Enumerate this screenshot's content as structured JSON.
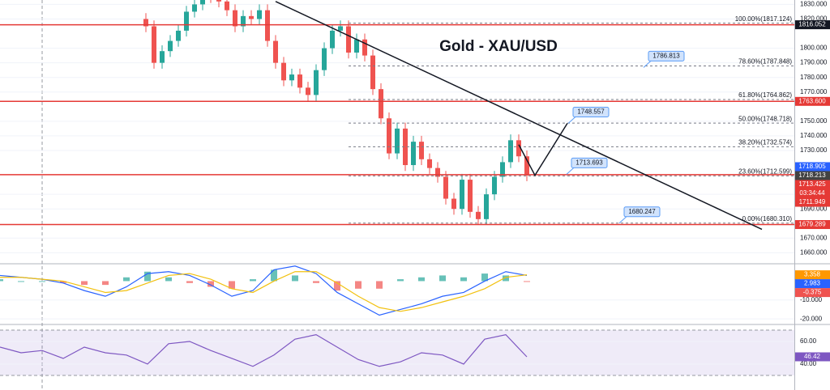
{
  "chart_data": [
    {
      "type": "candlestick",
      "title": "Gold - XAU/USD",
      "x": [
        0,
        1,
        2,
        3,
        4,
        5,
        6,
        7,
        8,
        9,
        10,
        11,
        12,
        13,
        14,
        15,
        16,
        17,
        18,
        19,
        20,
        21,
        22,
        23,
        24,
        25,
        26,
        27,
        28,
        29,
        30,
        31,
        32,
        33,
        34,
        35,
        36,
        37,
        38,
        39,
        40,
        41,
        42,
        43,
        44,
        45,
        46,
        47
      ],
      "open": [
        1820,
        1815,
        1790,
        1798,
        1805,
        1812,
        1825,
        1830,
        1838,
        1835,
        1832,
        1826,
        1815,
        1822,
        1820,
        1826,
        1805,
        1790,
        1778,
        1782,
        1773,
        1768,
        1785,
        1800,
        1812,
        1815,
        1797,
        1806,
        1795,
        1772,
        1752,
        1728,
        1745,
        1720,
        1736,
        1724,
        1718,
        1712,
        1697,
        1690,
        1710,
        1688,
        1683,
        1700,
        1712,
        1722,
        1737,
        1726
      ],
      "high": [
        1824,
        1819,
        1802,
        1809,
        1816,
        1829,
        1834,
        1842,
        1842,
        1839,
        1836,
        1830,
        1826,
        1826,
        1830,
        1830,
        1809,
        1794,
        1786,
        1786,
        1777,
        1789,
        1804,
        1816,
        1819,
        1819,
        1810,
        1810,
        1799,
        1776,
        1756,
        1749,
        1749,
        1740,
        1740,
        1728,
        1722,
        1716,
        1701,
        1714,
        1714,
        1692,
        1704,
        1716,
        1726,
        1741,
        1741,
        1730
      ],
      "low": [
        1811,
        1786,
        1786,
        1794,
        1801,
        1808,
        1821,
        1826,
        1831,
        1828,
        1822,
        1811,
        1811,
        1816,
        1816,
        1801,
        1786,
        1774,
        1774,
        1769,
        1764,
        1764,
        1781,
        1796,
        1808,
        1793,
        1793,
        1791,
        1768,
        1748,
        1724,
        1724,
        1716,
        1716,
        1720,
        1714,
        1708,
        1693,
        1686,
        1686,
        1684,
        1679,
        1679,
        1696,
        1708,
        1718,
        1722,
        1709
      ],
      "close": [
        1815,
        1790,
        1798,
        1805,
        1812,
        1825,
        1830,
        1838,
        1835,
        1832,
        1826,
        1815,
        1822,
        1820,
        1826,
        1805,
        1790,
        1778,
        1782,
        1773,
        1768,
        1785,
        1800,
        1812,
        1815,
        1797,
        1806,
        1795,
        1772,
        1752,
        1728,
        1745,
        1720,
        1736,
        1724,
        1718,
        1712,
        1697,
        1690,
        1710,
        1688,
        1683,
        1700,
        1712,
        1722,
        1737,
        1726,
        1713
      ],
      "up_color": "#26a69a",
      "down_color": "#ef5350",
      "xlim": [
        -18,
        80
      ],
      "ylim": [
        1653,
        1833
      ],
      "yticks": [
        {
          "value": 1830,
          "label": "1830.000"
        },
        {
          "value": 1820,
          "label": "1820.000"
        },
        {
          "value": 1800,
          "label": "1800.000"
        },
        {
          "value": 1790,
          "label": "1790.000"
        },
        {
          "value": 1780,
          "label": "1780.000"
        },
        {
          "value": 1770,
          "label": "1770.000"
        },
        {
          "value": 1750,
          "label": "1750.000"
        },
        {
          "value": 1740,
          "label": "1740.000"
        },
        {
          "value": 1730,
          "label": "1730.000"
        },
        {
          "value": 1700,
          "label": "1700.000"
        },
        {
          "value": 1690,
          "label": "1690.000"
        },
        {
          "value": 1670,
          "label": "1670.000"
        },
        {
          "value": 1660,
          "label": "1660.000"
        }
      ],
      "grid": true,
      "hlines": [
        1816.052,
        1763.6,
        1713.425,
        1679.289
      ],
      "hline_color": "#e53935",
      "fib": [
        {
          "value": 1817.124,
          "label": "100.00%(1817.124)"
        },
        {
          "value": 1787.848,
          "label": "78.60%(1787.848)"
        },
        {
          "value": 1764.862,
          "label": "61.80%(1764.862)"
        },
        {
          "value": 1748.718,
          "label": "50.00%(1748.718)"
        },
        {
          "value": 1732.574,
          "label": "38.20%(1732.574)"
        },
        {
          "value": 1712.599,
          "label": "23.60%(1712.599)"
        },
        {
          "value": 1680.31,
          "label": "0.00%(1680.310)"
        }
      ],
      "fib_start": 25,
      "callouts": [
        1786.813,
        1748.557,
        1713.693,
        1680.247
      ],
      "trendline": {
        "x": [
          16,
          76
        ],
        "y": [
          1832,
          1676
        ]
      },
      "projection": {
        "x": [
          46,
          48,
          52
        ],
        "y": [
          1734,
          1713,
          1748.6
        ]
      },
      "price_tags": [
        {
          "value": 1816.052,
          "color": "#131722"
        },
        {
          "value": 1763.6,
          "label": "1763.600",
          "color": "#e53935"
        },
        {
          "value": 1718.905,
          "color": "#2962ff"
        },
        {
          "value": 1718.213,
          "color": "#424242"
        },
        {
          "value": 1713.425,
          "color": "#e53935"
        },
        {
          "value": 1711.949,
          "color": "#e53935"
        },
        {
          "value": 1679.289,
          "color": "#e53935"
        }
      ],
      "countdown": "03:34:44"
    },
    {
      "type": "macd",
      "x": [
        -18,
        -15.4,
        -12.8,
        -10.2,
        -7.6,
        -5,
        -2.4,
        0.2,
        2.8,
        5.4,
        8,
        10.6,
        13.2,
        15.8,
        18.4,
        21,
        23.6,
        26.2,
        28.8,
        31.4,
        34,
        36.6,
        39.2,
        41.8,
        44.4,
        47
      ],
      "histogram": [
        1,
        0,
        0,
        -1,
        -2,
        -2,
        2,
        5,
        2,
        -1,
        -3,
        -4,
        1,
        6,
        3,
        -1,
        -5,
        -4,
        -4,
        1,
        2,
        3,
        2,
        4,
        3,
        -0.375
      ],
      "up_color": "#26a69a",
      "down_color": "#ef5350",
      "series": [
        {
          "color": "#2962ff",
          "values": [
            3,
            2,
            1,
            -1,
            -5,
            -8,
            -3,
            4,
            5,
            3,
            -2,
            -8,
            -5,
            6,
            8,
            4,
            -6,
            -12,
            -18,
            -15,
            -12,
            -8,
            -6,
            0,
            5,
            2.983
          ]
        },
        {
          "color": "#f2c10f",
          "values": [
            2,
            2,
            1,
            0,
            -3,
            -6,
            -5,
            -1,
            3,
            4,
            1,
            -4,
            -6,
            0,
            5,
            5,
            -1,
            -8,
            -14,
            -16,
            -14,
            -11,
            -8,
            -4,
            2,
            3.358
          ]
        }
      ],
      "xlim": [
        -18,
        80
      ],
      "ylim": [
        -22.5,
        8.75
      ],
      "yticks": [
        {
          "value": -10,
          "label": "-10.000"
        },
        {
          "value": -20,
          "label": "-20.000"
        }
      ],
      "price_tags": [
        {
          "value": 3.358,
          "color": "#ff9800"
        },
        {
          "value": 2.983,
          "color": "#2962ff"
        },
        {
          "value": -0.375,
          "color": "#ef5350"
        }
      ]
    },
    {
      "type": "line",
      "x": [
        -18,
        -15.4,
        -12.8,
        -10.2,
        -7.6,
        -5,
        -2.4,
        0.2,
        2.8,
        5.4,
        8,
        10.6,
        13.2,
        15.8,
        18.4,
        21,
        23.6,
        26.2,
        28.8,
        31.4,
        34,
        36.6,
        39.2,
        41.8,
        44.4,
        47
      ],
      "series": [
        {
          "color": "#7e57c2",
          "values": [
            55,
            50,
            52,
            45,
            55,
            50,
            48,
            40,
            58,
            60,
            52,
            45,
            38,
            48,
            62,
            66,
            55,
            44,
            38,
            42,
            50,
            48,
            40,
            62,
            66,
            46.42
          ]
        }
      ],
      "band": [
        30,
        70
      ],
      "band_color": "rgba(126,87,194,0.12)",
      "xlim": [
        -18,
        80
      ],
      "ylim": [
        17.1,
        74.3
      ],
      "yticks": [
        {
          "value": 60,
          "label": "60.00"
        },
        {
          "value": 40,
          "label": "40.00"
        }
      ],
      "price_tags": [
        {
          "value": 46.42,
          "color": "#7e57c2"
        }
      ]
    }
  ]
}
